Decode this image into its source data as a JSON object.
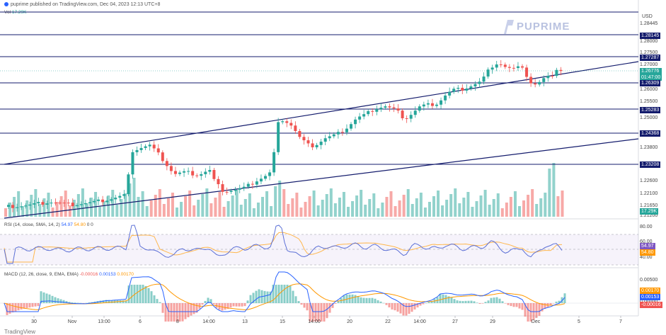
{
  "header": {
    "published_text": "puprime published on TradingView.com, Dec 04, 2023 12:13 UTC+8",
    "volume_label": "Vol",
    "volume_value": "17.29K"
  },
  "brand": {
    "name": "PUPRIME",
    "tradingview": "TradingView"
  },
  "axis": {
    "currency": "USD",
    "price_labels": [
      "1.28445",
      "1.28000",
      "1.27500",
      "1.27000",
      "1.26000",
      "1.25500",
      "1.25000",
      "1.23800",
      "1.22600",
      "1.22100",
      "1.21650",
      "1.21200"
    ],
    "x_labels": [
      "30",
      "Nov",
      "13:00",
      "6",
      "8",
      "14:00",
      "13",
      "15",
      "14:00",
      "20",
      "22",
      "14:00",
      "27",
      "29",
      "Dec",
      "5",
      "7"
    ]
  },
  "levels": [
    {
      "label": "1.28145",
      "color": "#131b6c"
    },
    {
      "label": "1.27287",
      "color": "#131b6c"
    },
    {
      "label": "1.26309",
      "color": "#131b6c"
    },
    {
      "label": "1.25283",
      "color": "#131b6c"
    },
    {
      "label": "1.24368",
      "color": "#131b6c"
    },
    {
      "label": "1.23208",
      "color": "#131b6c"
    }
  ],
  "current_price": {
    "price": "1.26776",
    "countdown": "01:47:00"
  },
  "volume_tag": "17.29K",
  "rsi": {
    "title": "RSI (14, close, SMA, 14, 2)",
    "value_rsi": "54.97",
    "value_sma": "54.80",
    "extra": "0 0",
    "levels": [
      "80.00",
      "60.00",
      "40.00"
    ],
    "tag_rsi": "54.97",
    "tag_sma": "54.80"
  },
  "macd": {
    "title": "MACD (12, 26, close, 9, EMA, EMA)",
    "value_hist": "-0.00016",
    "value_macd": "0.00153",
    "value_signal": "0.00170",
    "axis": [
      "0.00500",
      "0.00000"
    ],
    "tag_signal": "0.00170",
    "tag_macd": "0.00153",
    "tag_hist": "-0.00016"
  },
  "colors": {
    "up": "#26a69a",
    "down": "#ef5350",
    "level": "#131b6c",
    "rsi": "#5b6fd6",
    "rsi_ma": "#ffb74d",
    "macd": "#2962ff",
    "signal": "#ff9800"
  }
}
